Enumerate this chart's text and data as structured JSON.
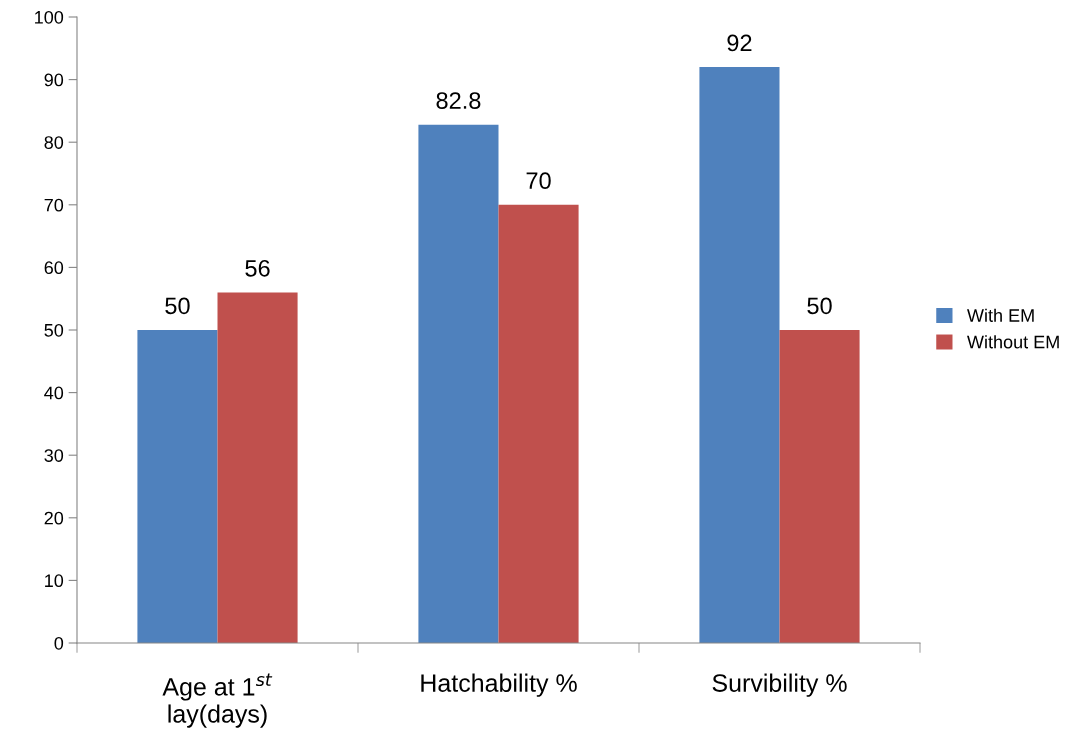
{
  "chart_data": {
    "type": "bar",
    "categories": [
      "Age at 1$^{st}$\nlay(days)",
      "Hatchability %",
      "Survibility %"
    ],
    "series": [
      {
        "name": "With EM",
        "color": "#4f81bd",
        "values": [
          50,
          82.8,
          92
        ]
      },
      {
        "name": "Without EM",
        "color": "#c0504d",
        "values": [
          56,
          70,
          50
        ]
      }
    ],
    "ylim": [
      0,
      100
    ],
    "yticks": [
      0,
      10,
      20,
      30,
      40,
      50,
      60,
      70,
      80,
      90,
      100
    ],
    "data_labels": true,
    "legend": "right",
    "grid": false
  }
}
